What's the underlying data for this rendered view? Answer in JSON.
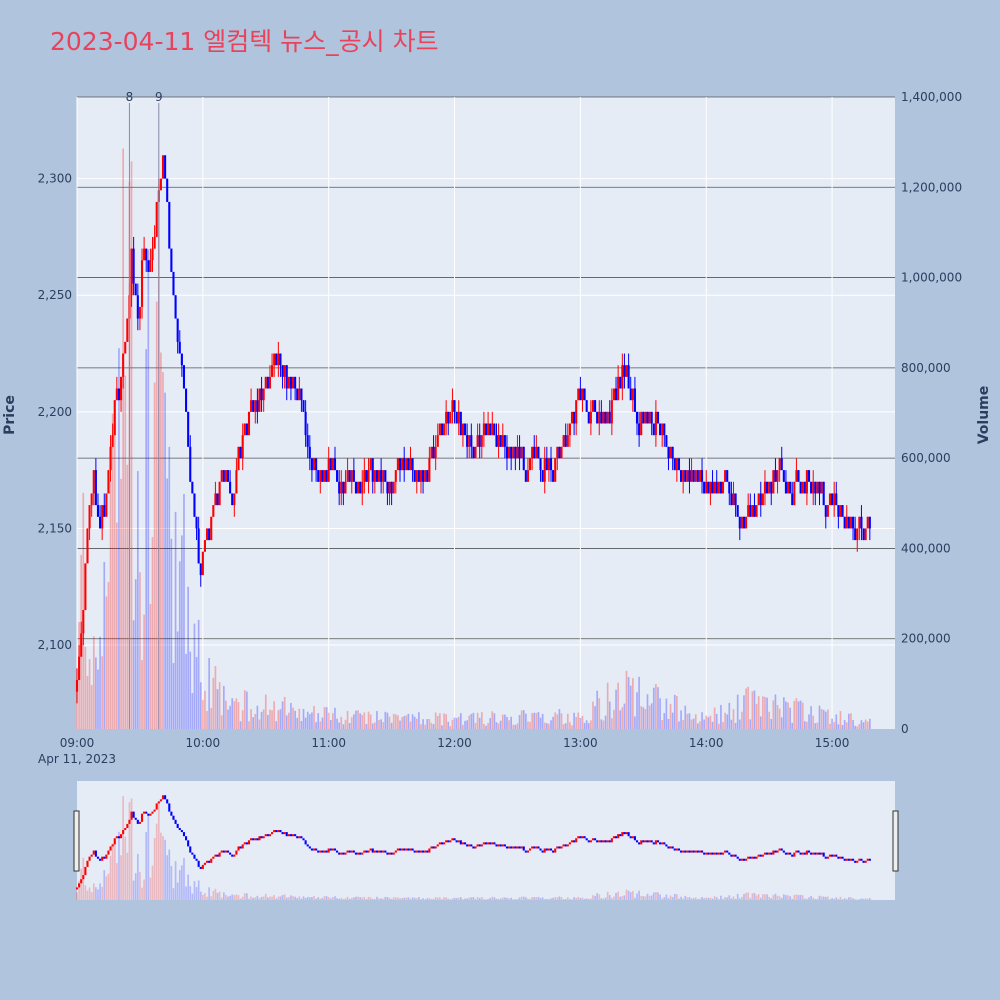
{
  "title": "2023-04-11 엘컴텍 뉴스_공시 차트",
  "colors": {
    "up": "#ff0000",
    "down": "#0000ff",
    "plot_bg": "#e5ecf6",
    "page_bg": "#b0c4de",
    "title": "#e8435a"
  },
  "chart_data": {
    "type": "candlestick",
    "title": "2023-04-11 엘컴텍 뉴스_공시 차트",
    "ylabel": "Price",
    "y2label": "Volume",
    "ylim": [
      2064,
      2335
    ],
    "y2lim": [
      0,
      1400000
    ],
    "yticks": [
      "2,100",
      "2,150",
      "2,200",
      "2,250",
      "2,300"
    ],
    "y2ticks": [
      "0",
      "200,000",
      "400,000",
      "600,000",
      "800,000",
      "1,000,000",
      "1,200,000",
      "1,400,000"
    ],
    "xticks": [
      "09:00",
      "10:00",
      "11:00",
      "12:00",
      "13:00",
      "14:00",
      "15:00"
    ],
    "xdate": "Apr 11, 2023",
    "x_range": [
      "09:00",
      "15:30"
    ],
    "annotations": [
      {
        "label": "8",
        "time": "09:25"
      },
      {
        "label": "9",
        "time": "09:39"
      }
    ],
    "price_path": [
      [
        "09:00",
        2080
      ],
      [
        "09:03",
        2120
      ],
      [
        "09:05",
        2155
      ],
      [
        "09:08",
        2170
      ],
      [
        "09:11",
        2150
      ],
      [
        "09:14",
        2165
      ],
      [
        "09:17",
        2195
      ],
      [
        "09:20",
        2210
      ],
      [
        "09:23",
        2230
      ],
      [
        "09:26",
        2270
      ],
      [
        "09:29",
        2240
      ],
      [
        "09:32",
        2270
      ],
      [
        "09:35",
        2255
      ],
      [
        "09:38",
        2290
      ],
      [
        "09:41",
        2305
      ],
      [
        "09:44",
        2275
      ],
      [
        "09:47",
        2240
      ],
      [
        "09:50",
        2225
      ],
      [
        "09:53",
        2185
      ],
      [
        "09:56",
        2160
      ],
      [
        "09:59",
        2135
      ],
      [
        "10:02",
        2150
      ],
      [
        "10:05",
        2160
      ],
      [
        "10:08",
        2170
      ],
      [
        "10:11",
        2175
      ],
      [
        "10:14",
        2160
      ],
      [
        "10:17",
        2185
      ],
      [
        "10:20",
        2195
      ],
      [
        "10:24",
        2200
      ],
      [
        "10:28",
        2210
      ],
      [
        "10:32",
        2215
      ],
      [
        "10:36",
        2225
      ],
      [
        "10:40",
        2210
      ],
      [
        "10:44",
        2215
      ],
      [
        "10:48",
        2200
      ],
      [
        "10:52",
        2175
      ],
      [
        "10:56",
        2170
      ],
      [
        "11:00",
        2178
      ],
      [
        "11:05",
        2170
      ],
      [
        "11:10",
        2175
      ],
      [
        "11:15",
        2165
      ],
      [
        "11:20",
        2172
      ],
      [
        "11:25",
        2178
      ],
      [
        "11:30",
        2168
      ],
      [
        "11:35",
        2180
      ],
      [
        "11:40",
        2175
      ],
      [
        "11:45",
        2172
      ],
      [
        "11:50",
        2185
      ],
      [
        "11:55",
        2195
      ],
      [
        "12:00",
        2200
      ],
      [
        "12:05",
        2190
      ],
      [
        "12:10",
        2180
      ],
      [
        "12:15",
        2195
      ],
      [
        "12:20",
        2188
      ],
      [
        "12:25",
        2180
      ],
      [
        "12:30",
        2185
      ],
      [
        "12:35",
        2175
      ],
      [
        "12:40",
        2180
      ],
      [
        "12:45",
        2178
      ],
      [
        "12:50",
        2182
      ],
      [
        "12:55",
        2195
      ],
      [
        "13:00",
        2205
      ],
      [
        "13:05",
        2200
      ],
      [
        "13:10",
        2195
      ],
      [
        "13:15",
        2205
      ],
      [
        "13:20",
        2218
      ],
      [
        "13:25",
        2205
      ],
      [
        "13:30",
        2195
      ],
      [
        "13:35",
        2198
      ],
      [
        "13:40",
        2190
      ],
      [
        "13:45",
        2182
      ],
      [
        "13:50",
        2175
      ],
      [
        "13:55",
        2172
      ],
      [
        "14:00",
        2168
      ],
      [
        "14:05",
        2172
      ],
      [
        "14:10",
        2170
      ],
      [
        "14:15",
        2160
      ],
      [
        "14:20",
        2155
      ],
      [
        "14:25",
        2162
      ],
      [
        "14:30",
        2170
      ],
      [
        "14:35",
        2175
      ],
      [
        "14:40",
        2168
      ],
      [
        "14:45",
        2172
      ],
      [
        "14:50",
        2170
      ],
      [
        "14:55",
        2165
      ],
      [
        "15:00",
        2160
      ],
      [
        "15:05",
        2155
      ],
      [
        "15:10",
        2150
      ],
      [
        "15:15",
        2147
      ],
      [
        "15:18",
        2152
      ]
    ],
    "volume_path": [
      [
        "09:00",
        150000
      ],
      [
        "09:03",
        600000
      ],
      [
        "09:06",
        250000
      ],
      [
        "09:10",
        300000
      ],
      [
        "09:15",
        500000
      ],
      [
        "09:20",
        900000
      ],
      [
        "09:25",
        1350000
      ],
      [
        "09:30",
        700000
      ],
      [
        "09:35",
        1000000
      ],
      [
        "09:39",
        1400000
      ],
      [
        "09:45",
        600000
      ],
      [
        "09:50",
        500000
      ],
      [
        "09:55",
        350000
      ],
      [
        "10:00",
        150000
      ],
      [
        "10:10",
        100000
      ],
      [
        "10:20",
        80000
      ],
      [
        "10:30",
        70000
      ],
      [
        "10:40",
        60000
      ],
      [
        "11:00",
        40000
      ],
      [
        "12:00",
        30000
      ],
      [
        "13:00",
        40000
      ],
      [
        "13:20",
        120000
      ],
      [
        "14:00",
        30000
      ],
      [
        "14:20",
        80000
      ],
      [
        "15:00",
        40000
      ],
      [
        "15:20",
        20000
      ]
    ]
  }
}
